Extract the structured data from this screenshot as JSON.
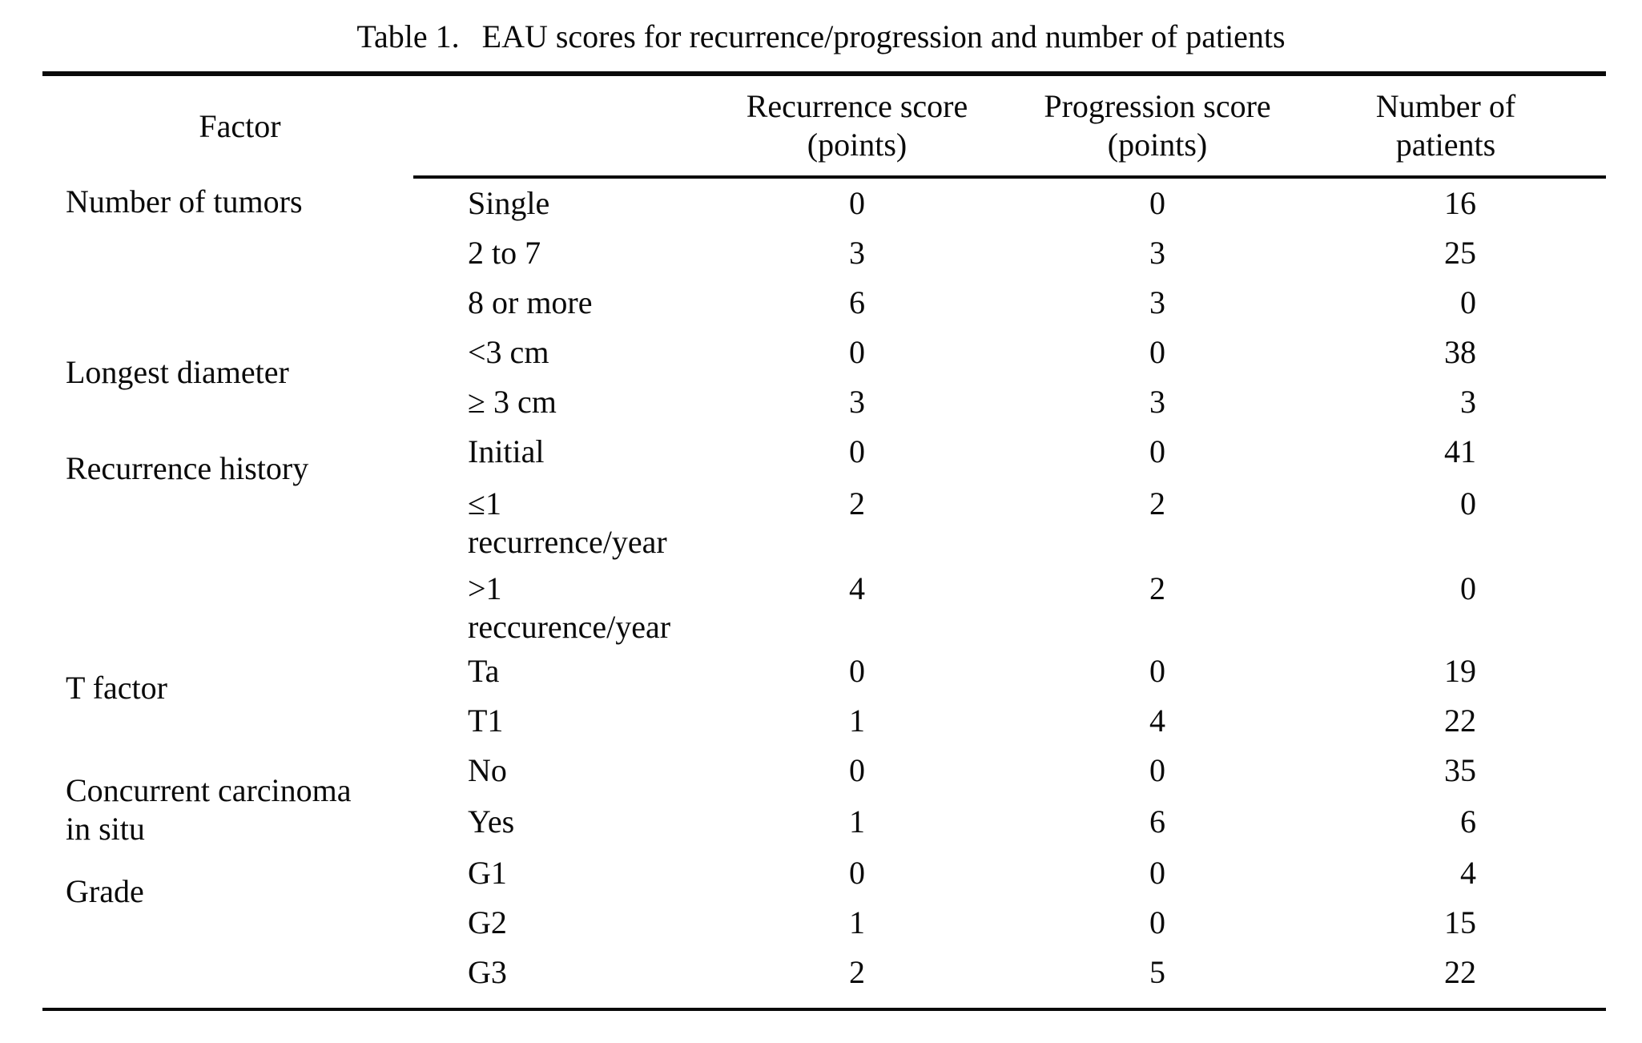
{
  "caption": {
    "label": "Table 1.",
    "text": "EAU scores for recurrence/progression and number of patients"
  },
  "table": {
    "header": {
      "factor": "Factor",
      "columns": [
        "Recurrence score\n(points)",
        "Progression score\n(points)",
        "Number of\npatients"
      ]
    },
    "groups": [
      {
        "factor": "Number of tumors",
        "rows": [
          {
            "category": "Single",
            "recurrence": "0",
            "progression": "0",
            "patients": "16"
          },
          {
            "category": "2 to 7",
            "recurrence": "3",
            "progression": "3",
            "patients": "25"
          },
          {
            "category": "8 or more",
            "recurrence": "6",
            "progression": "3",
            "patients": "0"
          }
        ]
      },
      {
        "factor": "Longest diameter",
        "rows": [
          {
            "category": "<3 cm",
            "recurrence": "0",
            "progression": "0",
            "patients": "38"
          },
          {
            "category": "≥ 3 cm",
            "recurrence": "3",
            "progression": "3",
            "patients": "3"
          }
        ]
      },
      {
        "factor": "Recurrence history",
        "rows": [
          {
            "category": "Initial",
            "recurrence": "0",
            "progression": "0",
            "patients": "41"
          },
          {
            "category": "≤1\nrecurrence/year",
            "recurrence": "2",
            "progression": "2",
            "patients": "0"
          },
          {
            "category": ">1\nreccurence/year",
            "recurrence": "4",
            "progression": "2",
            "patients": "0"
          }
        ]
      },
      {
        "factor": "T factor",
        "rows": [
          {
            "category": "Ta",
            "recurrence": "0",
            "progression": "0",
            "patients": "19"
          },
          {
            "category": "T1",
            "recurrence": "1",
            "progression": "4",
            "patients": "22"
          }
        ]
      },
      {
        "factor": "Concurrent carcinoma\nin situ",
        "rows": [
          {
            "category": "No",
            "recurrence": "0",
            "progression": "0",
            "patients": "35"
          },
          {
            "category": "Yes",
            "recurrence": "1",
            "progression": "6",
            "patients": "6"
          }
        ]
      },
      {
        "factor": "Grade",
        "rows": [
          {
            "category": "G1",
            "recurrence": "0",
            "progression": "0",
            "patients": "4"
          },
          {
            "category": "G2",
            "recurrence": "1",
            "progression": "0",
            "patients": "15"
          },
          {
            "category": "G3",
            "recurrence": "2",
            "progression": "5",
            "patients": "22"
          }
        ]
      }
    ]
  },
  "colors": {
    "ink": "#0a0a0a",
    "background": "#ffffff"
  }
}
